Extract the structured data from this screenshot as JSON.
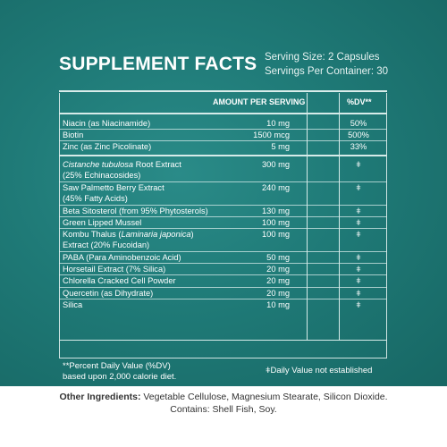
{
  "title": "SUPPLEMENT FACTS",
  "serving_size": "Serving Size: 2 Capsules",
  "servings_per_container": "Servings Per Container: 30",
  "header": {
    "amount": "AMOUNT PER SERVING",
    "dv": "%DV**"
  },
  "group1": [
    {
      "name": "Niacin (as Niacinamide)",
      "amount": "10 mg",
      "dv": "50%"
    },
    {
      "name": "Biotin",
      "amount": "1500 mcg",
      "dv": "500%"
    },
    {
      "name": "Zinc (as Zinc Picolinate)",
      "amount": "5 mg",
      "dv": "33%"
    }
  ],
  "group2": [
    {
      "name_italic": "Cistanche tubulosa",
      "name_rest": " Root Extract",
      "name_line2": "(25% Echinacosides)",
      "amount": "300 mg",
      "dv": "ǂ"
    },
    {
      "name": "Saw Palmetto Berry Extract",
      "name_line2": "(45% Fatty Acids)",
      "amount": "240 mg",
      "dv": "ǂ"
    },
    {
      "name": "Beta Sitosterol (from 95% Phytosterols)",
      "amount": "130 mg",
      "dv": "ǂ"
    },
    {
      "name": "Green Lipped Mussel",
      "amount": "100 mg",
      "dv": "ǂ"
    },
    {
      "name_pre": "Kombu Thalus (",
      "name_italic": "Laminaria japonica",
      "name_post": ")",
      "name_line2": "Extract (20% Fucoidan)",
      "amount": "100 mg",
      "dv": "ǂ"
    },
    {
      "name": "PABA (Para Aminobenzoic Acid)",
      "amount": "50 mg",
      "dv": "ǂ"
    },
    {
      "name": "Horsetail Extract (7% Silica)",
      "amount": "20 mg",
      "dv": "ǂ"
    },
    {
      "name": "Chlorella Cracked Cell Powder",
      "amount": "20 mg",
      "dv": "ǂ"
    },
    {
      "name": "Quercetin (as Dihydrate)",
      "amount": "20 mg",
      "dv": "ǂ"
    },
    {
      "name": "Silica",
      "amount": "10 mg",
      "dv": "ǂ"
    }
  ],
  "footnote_dv_line1": "**Percent Daily Value (%DV)",
  "footnote_dv_line2": "based upon 2,000 calorie diet.",
  "footnote_ne": "ǂDaily Value not established",
  "other_label": "Other Ingredients:",
  "other_text": " Vegetable Cellulose, Magnesium Stearate, Silicon Dioxide.",
  "contains": "Contains: Shell Fish, Soy.",
  "colors": {
    "panel": "#1f7a77",
    "text": "#ffffff",
    "lines": "#d6ebe9"
  }
}
